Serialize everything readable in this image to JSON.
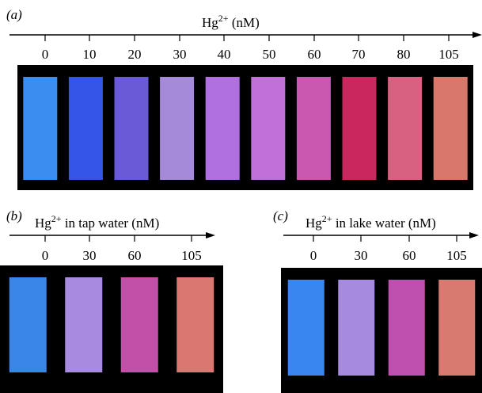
{
  "panels": [
    {
      "label": "(a)",
      "title": {
        "base": "Hg",
        "sup": "2+",
        "rest": " (nM)"
      },
      "ticks": [
        0,
        10,
        20,
        30,
        40,
        50,
        60,
        70,
        80,
        105
      ],
      "colors": [
        "#3a8ef0",
        "#3555e8",
        "#6b5ad8",
        "#a48ad8",
        "#b070e0",
        "#c070d8",
        "#c858b0",
        "#c8285e",
        "#d86080",
        "#d8786a"
      ]
    },
    {
      "label": "(b)",
      "title": {
        "base": "Hg",
        "sup": "2+",
        "rest": " in tap water (nM)"
      },
      "ticks": [
        0,
        30,
        60,
        105
      ],
      "colors": [
        "#3a86e8",
        "#a88ae0",
        "#c050a8",
        "#d87870"
      ]
    },
    {
      "label": "(c)",
      "title": {
        "base": "Hg",
        "sup": "2+",
        "rest": " in lake water (nM)"
      },
      "ticks": [
        0,
        30,
        60,
        105
      ],
      "colors": [
        "#3a86f0",
        "#a68ae0",
        "#c050b0",
        "#d87a70"
      ]
    }
  ]
}
